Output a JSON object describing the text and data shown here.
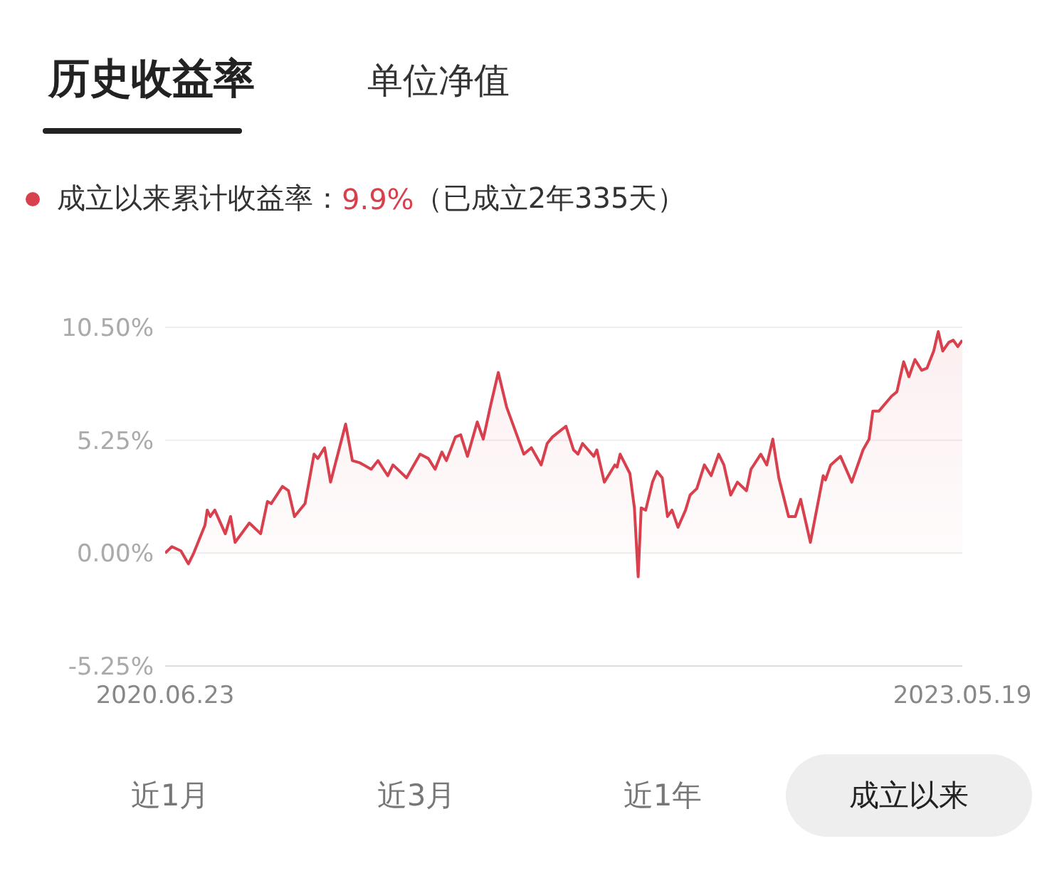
{
  "chart_data": {
    "type": "area",
    "title": "历史收益率",
    "annotations": [
      "单位净值",
      "成立以来累计收益率：",
      "9.9%",
      "（已成立2年335天）",
      "近1月",
      "近3月",
      "近1年",
      "成立以来"
    ],
    "x": [
      "2020-06-23",
      "2020-07-02",
      "2020-07-14",
      "2020-07-24",
      "2020-07-31",
      "2020-08-15",
      "2020-08-18",
      "2020-08-22",
      "2020-08-28",
      "2020-09-11",
      "2020-09-18",
      "2020-09-24",
      "2020-10-13",
      "2020-10-28",
      "2020-11-06",
      "2020-11-11",
      "2020-11-26",
      "2020-12-04",
      "2020-12-12",
      "2020-12-26",
      "2021-01-07",
      "2021-01-12",
      "2021-01-21",
      "2021-01-29",
      "2021-02-18",
      "2021-02-27",
      "2021-03-09",
      "2021-03-24",
      "2021-04-02",
      "2021-04-15",
      "2021-04-22",
      "2021-05-10",
      "2021-05-28",
      "2021-06-08",
      "2021-06-17",
      "2021-06-26",
      "2021-07-02",
      "2021-07-14",
      "2021-07-21",
      "2021-07-30",
      "2021-08-12",
      "2021-08-20",
      "2021-08-30",
      "2021-09-09",
      "2021-09-20",
      "2021-10-13",
      "2021-10-23",
      "2021-11-05",
      "2021-11-13",
      "2021-11-20",
      "2021-12-08",
      "2021-12-18",
      "2021-12-24",
      "2021-12-30",
      "2022-01-14",
      "2022-01-18",
      "2022-01-28",
      "2022-02-11",
      "2022-02-14",
      "2022-02-18",
      "2022-03-03",
      "2022-03-09",
      "2022-03-14",
      "2022-03-18",
      "2022-03-24",
      "2022-04-02",
      "2022-04-08",
      "2022-04-15",
      "2022-04-22",
      "2022-04-28",
      "2022-05-06",
      "2022-05-16",
      "2022-05-22",
      "2022-05-31",
      "2022-06-10",
      "2022-06-19",
      "2022-06-29",
      "2022-07-06",
      "2022-07-15",
      "2022-07-24",
      "2022-08-05",
      "2022-08-11",
      "2022-08-24",
      "2022-09-01",
      "2022-09-09",
      "2022-09-17",
      "2022-09-30",
      "2022-10-09",
      "2022-10-16",
      "2022-10-29",
      "2022-11-15",
      "2022-11-18",
      "2022-11-25",
      "2022-12-08",
      "2022-12-23",
      "2023-01-07",
      "2023-01-15",
      "2023-01-20",
      "2023-01-28",
      "2023-02-14",
      "2023-02-21",
      "2023-03-02",
      "2023-03-09",
      "2023-03-17",
      "2023-03-26",
      "2023-04-02",
      "2023-04-11",
      "2023-04-17",
      "2023-04-23",
      "2023-05-01",
      "2023-05-07",
      "2023-05-13",
      "2023-05-19"
    ],
    "values": [
      0.0,
      0.3,
      0.1,
      -0.5,
      0.0,
      1.3,
      2.0,
      1.7,
      2.0,
      0.9,
      1.7,
      0.5,
      1.4,
      0.9,
      2.4,
      2.3,
      3.1,
      2.9,
      1.7,
      2.3,
      4.6,
      4.4,
      4.9,
      3.3,
      6.0,
      4.3,
      4.2,
      3.9,
      4.3,
      3.6,
      4.1,
      3.5,
      4.6,
      4.4,
      3.9,
      4.7,
      4.3,
      5.4,
      5.5,
      4.5,
      6.1,
      5.3,
      6.9,
      8.4,
      6.8,
      4.6,
      4.9,
      4.1,
      5.1,
      5.4,
      5.9,
      4.8,
      4.6,
      5.1,
      4.5,
      4.8,
      3.3,
      4.1,
      4.0,
      4.6,
      3.7,
      2.1,
      -1.1,
      2.1,
      2.0,
      3.3,
      3.8,
      3.5,
      1.7,
      2.0,
      1.2,
      2.0,
      2.7,
      3.0,
      4.1,
      3.6,
      4.6,
      4.1,
      2.7,
      3.3,
      2.9,
      3.9,
      4.6,
      4.1,
      5.3,
      3.5,
      1.7,
      1.7,
      2.5,
      0.5,
      3.6,
      3.4,
      4.1,
      4.5,
      3.3,
      4.8,
      5.3,
      6.6,
      6.6,
      7.3,
      7.5,
      8.9,
      8.2,
      9.0,
      8.5,
      8.6,
      9.4,
      10.3,
      9.4,
      9.8,
      9.9,
      9.6,
      9.9
    ],
    "color": "#d9404e",
    "xlim": [
      "2020-06-23",
      "2023-05-19"
    ],
    "xticks": [
      {
        "value": "2020-06-23",
        "label": "2020.06.23"
      },
      {
        "value": "2023-05-19",
        "label": "2023.05.19"
      }
    ],
    "ylim": [
      -5.25,
      10.5
    ],
    "yticks": [
      {
        "value": -5.25,
        "label": "-5.25%"
      },
      {
        "value": 0,
        "label": "0.00%"
      },
      {
        "value": 5.25,
        "label": "5.25%"
      },
      {
        "value": 10.5,
        "label": "10.50%"
      }
    ],
    "grid": "y",
    "marker": "none",
    "line_style": "solid"
  }
}
